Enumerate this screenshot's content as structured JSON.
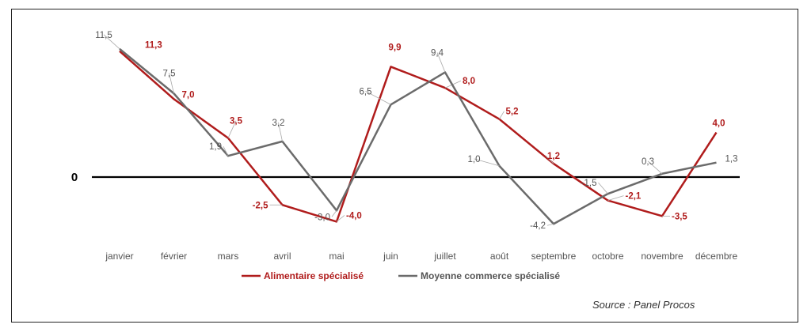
{
  "chart_data": {
    "type": "line",
    "categories": [
      "janvier",
      "février",
      "mars",
      "avril",
      "mai",
      "juin",
      "juillet",
      "août",
      "septembre",
      "octobre",
      "novembre",
      "décembre"
    ],
    "series": [
      {
        "name": "Alimentaire spécialisé",
        "color": "#b01c1c",
        "values": [
          11.3,
          7.0,
          3.5,
          -2.5,
          -4.0,
          9.9,
          8.0,
          5.2,
          1.2,
          -2.1,
          -3.5,
          4.0
        ],
        "labels": [
          "11,3",
          "7,0",
          "3,5",
          "-2,5",
          "-4,0",
          "9,9",
          "8,0",
          "5,2",
          "1,2",
          "-2,1",
          "-3,5",
          "4,0"
        ]
      },
      {
        "name": "Moyenne commerce spécialisé",
        "color": "#6b6b6b",
        "values": [
          11.5,
          7.5,
          1.9,
          3.2,
          -3.0,
          6.5,
          9.4,
          1.0,
          -4.2,
          -1.5,
          0.3,
          1.3
        ],
        "labels": [
          "11,5",
          "7,5",
          "1,9",
          "3,2",
          "-3,0",
          "6,5",
          "9,4",
          "1,0",
          "-4,2",
          "-1,5",
          "0,3",
          "1,3"
        ]
      }
    ],
    "zero_label": "0",
    "ylim": [
      -6,
      13
    ],
    "grid": false,
    "legend_position": "bottom"
  },
  "source": "Source : Panel Procos"
}
